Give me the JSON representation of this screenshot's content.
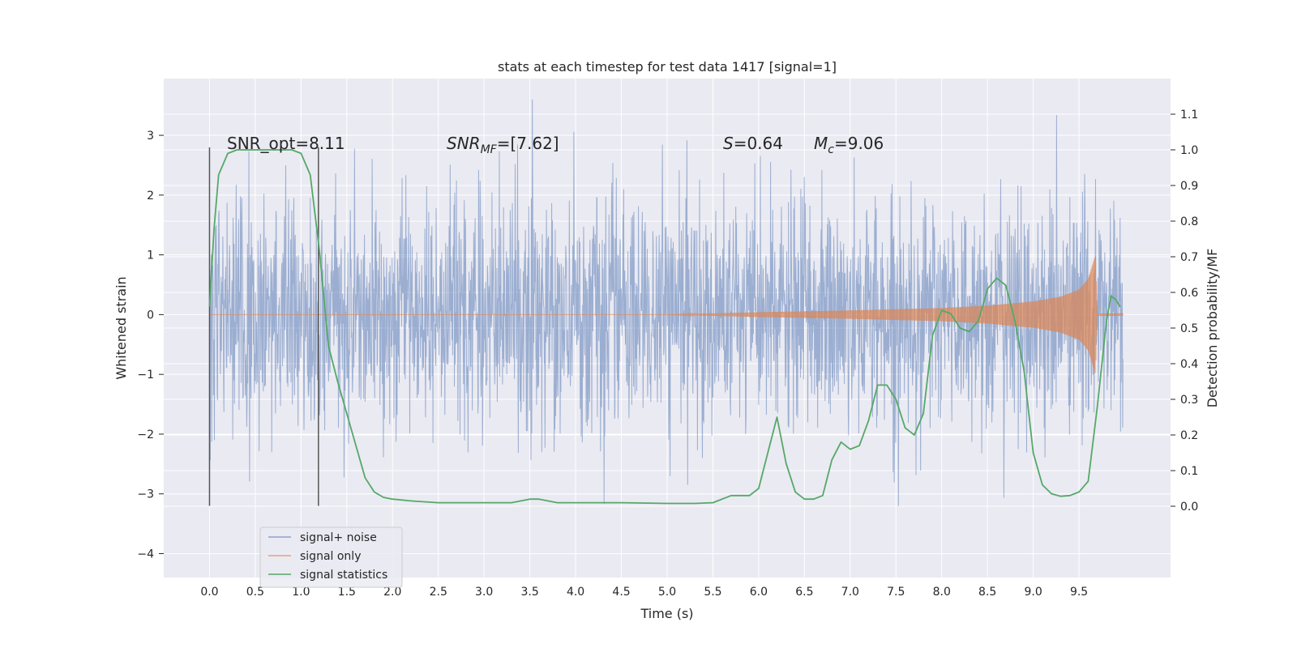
{
  "chart_data": {
    "type": "line",
    "title": "stats at each timestep for test data 1417 [signal=1]",
    "xlabel": "Time (s)",
    "ylabel": "Whitened strain",
    "y2label": "Detection probability/MF",
    "xlim": [
      -0.5,
      10.5
    ],
    "ylim": [
      -4.4,
      3.95
    ],
    "y2lim": [
      -0.2,
      1.2
    ],
    "xticks": [
      "0.0",
      "0.5",
      "1.0",
      "1.5",
      "2.0",
      "2.5",
      "3.0",
      "3.5",
      "4.0",
      "4.5",
      "5.0",
      "5.5",
      "6.0",
      "6.5",
      "7.0",
      "7.5",
      "8.0",
      "8.5",
      "9.0",
      "9.5"
    ],
    "yticks": [
      "3",
      "2",
      "1",
      "0",
      "−1",
      "−2",
      "−3",
      "−4"
    ],
    "y2ticks": [
      "1.1",
      "1.0",
      "0.9",
      "0.8",
      "0.7",
      "0.6",
      "0.5",
      "0.4",
      "0.3",
      "0.2",
      "0.1",
      "0.0"
    ],
    "colors": {
      "background": "#eaeaf2",
      "grid": "#ffffff",
      "noise": "#4c72b0",
      "signal": "#dd8452",
      "stats": "#55a868",
      "vline": "#555555"
    },
    "annotations": {
      "snr_opt": "SNR_opt=8.11",
      "snr_mf_base": "SNR",
      "snr_mf_sub": "MF",
      "snr_mf_rest": "=[7.62]",
      "s_var": "S",
      "s_rest": "=0.64",
      "mc_base": "M",
      "mc_sub": "c",
      "mc_rest": "=9.06"
    },
    "vlines_x": [
      0.0,
      1.19
    ],
    "noise_range": [
      0.0,
      9.98
    ],
    "signal_envelope": {
      "t": [
        0,
        5.0,
        6.0,
        7.0,
        8.0,
        8.5,
        9.0,
        9.3,
        9.5,
        9.6,
        9.68,
        9.7,
        9.98
      ],
      "amp": [
        0.0,
        0.0,
        0.04,
        0.07,
        0.11,
        0.15,
        0.22,
        0.3,
        0.42,
        0.6,
        1.0,
        0.02,
        0.02
      ]
    },
    "series": [
      {
        "name": "signal statistics",
        "x": [
          0.0,
          0.05,
          0.1,
          0.2,
          0.3,
          0.5,
          0.7,
          0.9,
          1.0,
          1.1,
          1.2,
          1.3,
          1.4,
          1.5,
          1.6,
          1.7,
          1.8,
          1.9,
          2.0,
          2.2,
          2.5,
          3.0,
          3.3,
          3.5,
          3.6,
          3.8,
          4.0,
          4.5,
          5.0,
          5.3,
          5.5,
          5.6,
          5.7,
          5.8,
          5.9,
          6.0,
          6.1,
          6.2,
          6.3,
          6.4,
          6.5,
          6.6,
          6.7,
          6.8,
          6.9,
          7.0,
          7.1,
          7.2,
          7.3,
          7.4,
          7.5,
          7.6,
          7.7,
          7.8,
          7.9,
          8.0,
          8.1,
          8.2,
          8.3,
          8.4,
          8.5,
          8.6,
          8.7,
          8.8,
          8.9,
          9.0,
          9.1,
          9.2,
          9.3,
          9.4,
          9.5,
          9.6,
          9.7,
          9.8,
          9.85,
          9.9,
          9.95
        ],
        "values": [
          0.56,
          0.78,
          0.93,
          0.99,
          1.0,
          1.0,
          1.0,
          1.0,
          0.99,
          0.93,
          0.72,
          0.45,
          0.35,
          0.26,
          0.17,
          0.08,
          0.04,
          0.025,
          0.02,
          0.015,
          0.01,
          0.01,
          0.01,
          0.02,
          0.02,
          0.01,
          0.01,
          0.01,
          0.008,
          0.008,
          0.01,
          0.02,
          0.03,
          0.03,
          0.03,
          0.05,
          0.15,
          0.25,
          0.12,
          0.04,
          0.02,
          0.02,
          0.03,
          0.13,
          0.18,
          0.16,
          0.17,
          0.24,
          0.34,
          0.34,
          0.3,
          0.22,
          0.2,
          0.26,
          0.48,
          0.55,
          0.54,
          0.5,
          0.49,
          0.52,
          0.61,
          0.64,
          0.62,
          0.52,
          0.38,
          0.15,
          0.06,
          0.035,
          0.028,
          0.03,
          0.04,
          0.07,
          0.28,
          0.52,
          0.59,
          0.58,
          0.56
        ]
      }
    ],
    "legend": {
      "position": "lower-left",
      "entries": [
        "signal+ noise",
        "signal only",
        "signal statistics"
      ]
    }
  }
}
